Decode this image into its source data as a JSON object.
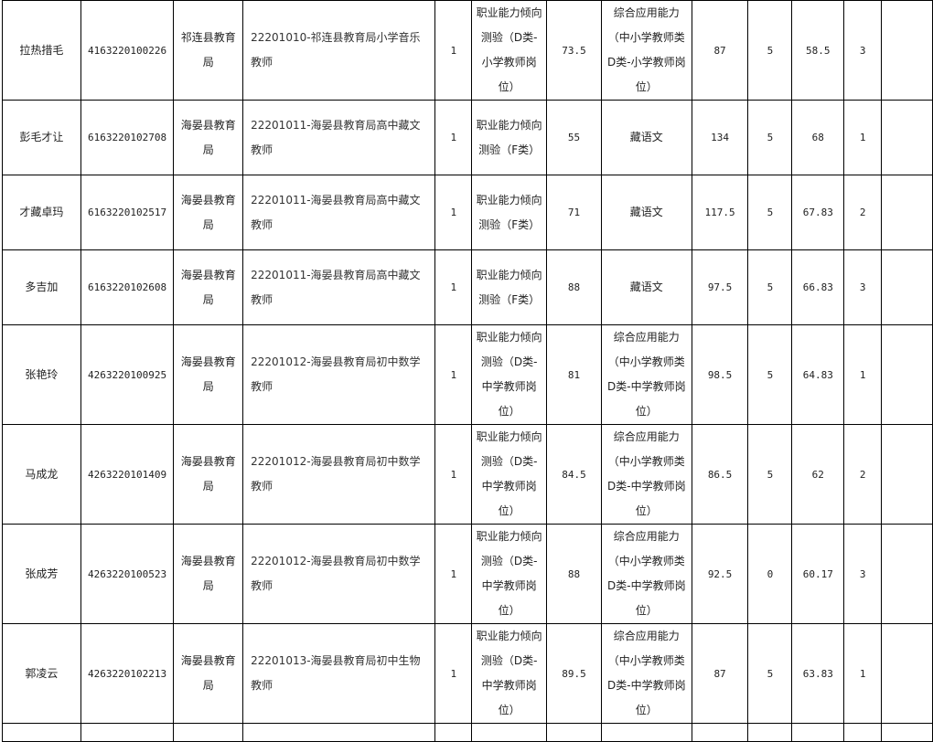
{
  "rows": [
    {
      "name": "拉热措毛",
      "id": "4163220100226",
      "dept": "祁连县教育局",
      "job": "22201010-祁连县教育局小学音乐教师",
      "count": "1",
      "subj1": "职业能力倾向测验（D类-小学教师岗位）",
      "score1": "73.5",
      "subj2": "综合应用能力（中小学教师类D类-小学教师岗位）",
      "score2": "87",
      "bonus": "5",
      "total": "58.5",
      "rank": "3",
      "note": ""
    },
    {
      "name": "彭毛才让",
      "id": "6163220102708",
      "dept": "海晏县教育局",
      "job": "22201011-海晏县教育局高中藏文教师",
      "count": "1",
      "subj1": "职业能力倾向测验（F类）",
      "score1": "55",
      "subj2": "藏语文",
      "score2": "134",
      "bonus": "5",
      "total": "68",
      "rank": "1",
      "note": ""
    },
    {
      "name": "才藏卓玛",
      "id": "6163220102517",
      "dept": "海晏县教育局",
      "job": "22201011-海晏县教育局高中藏文教师",
      "count": "1",
      "subj1": "职业能力倾向测验（F类）",
      "score1": "71",
      "subj2": "藏语文",
      "score2": "117.5",
      "bonus": "5",
      "total": "67.83",
      "rank": "2",
      "note": ""
    },
    {
      "name": "多吉加",
      "id": "6163220102608",
      "dept": "海晏县教育局",
      "job": "22201011-海晏县教育局高中藏文教师",
      "count": "1",
      "subj1": "职业能力倾向测验（F类）",
      "score1": "88",
      "subj2": "藏语文",
      "score2": "97.5",
      "bonus": "5",
      "total": "66.83",
      "rank": "3",
      "note": ""
    },
    {
      "name": "张艳玲",
      "id": "4263220100925",
      "dept": "海晏县教育局",
      "job": "22201012-海晏县教育局初中数学教师",
      "count": "1",
      "subj1": "职业能力倾向测验（D类-中学教师岗位）",
      "score1": "81",
      "subj2": "综合应用能力（中小学教师类D类-中学教师岗位）",
      "score2": "98.5",
      "bonus": "5",
      "total": "64.83",
      "rank": "1",
      "note": ""
    },
    {
      "name": "马成龙",
      "id": "4263220101409",
      "dept": "海晏县教育局",
      "job": "22201012-海晏县教育局初中数学教师",
      "count": "1",
      "subj1": "职业能力倾向测验（D类-中学教师岗位）",
      "score1": "84.5",
      "subj2": "综合应用能力（中小学教师类D类-中学教师岗位）",
      "score2": "86.5",
      "bonus": "5",
      "total": "62",
      "rank": "2",
      "note": ""
    },
    {
      "name": "张成芳",
      "id": "4263220100523",
      "dept": "海晏县教育局",
      "job": "22201012-海晏县教育局初中数学教师",
      "count": "1",
      "subj1": "职业能力倾向测验（D类-中学教师岗位）",
      "score1": "88",
      "subj2": "综合应用能力（中小学教师类D类-中学教师岗位）",
      "score2": "92.5",
      "bonus": "0",
      "total": "60.17",
      "rank": "3",
      "note": ""
    },
    {
      "name": "郭凌云",
      "id": "4263220102213",
      "dept": "海晏县教育局",
      "job": "22201013-海晏县教育局初中生物教师",
      "count": "1",
      "subj1": "职业能力倾向测验（D类-中学教师岗位）",
      "score1": "89.5",
      "subj2": "综合应用能力（中小学教师类D类-中学教师岗位）",
      "score2": "87",
      "bonus": "5",
      "total": "63.83",
      "rank": "1",
      "note": ""
    }
  ]
}
